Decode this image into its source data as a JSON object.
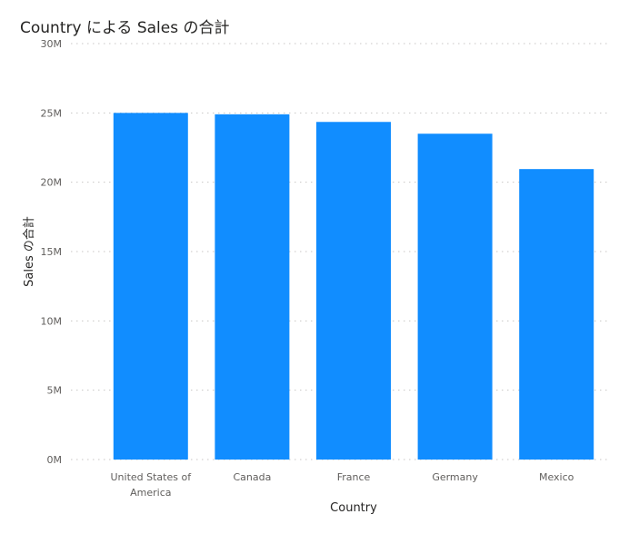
{
  "chart_data": {
    "type": "bar",
    "title": "Country による Sales の合計",
    "xlabel": "Country",
    "ylabel": "Sales の合計",
    "categories": [
      "United States of America",
      "Canada",
      "France",
      "Germany",
      "Mexico"
    ],
    "category_lines": [
      [
        "United States of",
        "America"
      ],
      [
        "Canada"
      ],
      [
        "France"
      ],
      [
        "Germany"
      ],
      [
        "Mexico"
      ]
    ],
    "values": [
      25000000,
      24900000,
      24350000,
      23500000,
      20950000
    ],
    "ylim": [
      0,
      30000000
    ],
    "yticks": [
      0,
      5000000,
      10000000,
      15000000,
      20000000,
      25000000,
      30000000
    ],
    "ytick_labels": [
      "0M",
      "5M",
      "10M",
      "15M",
      "20M",
      "25M",
      "30M"
    ],
    "grid": true,
    "bar_color": "#118DFF",
    "grid_color": "#C8C6C4"
  }
}
